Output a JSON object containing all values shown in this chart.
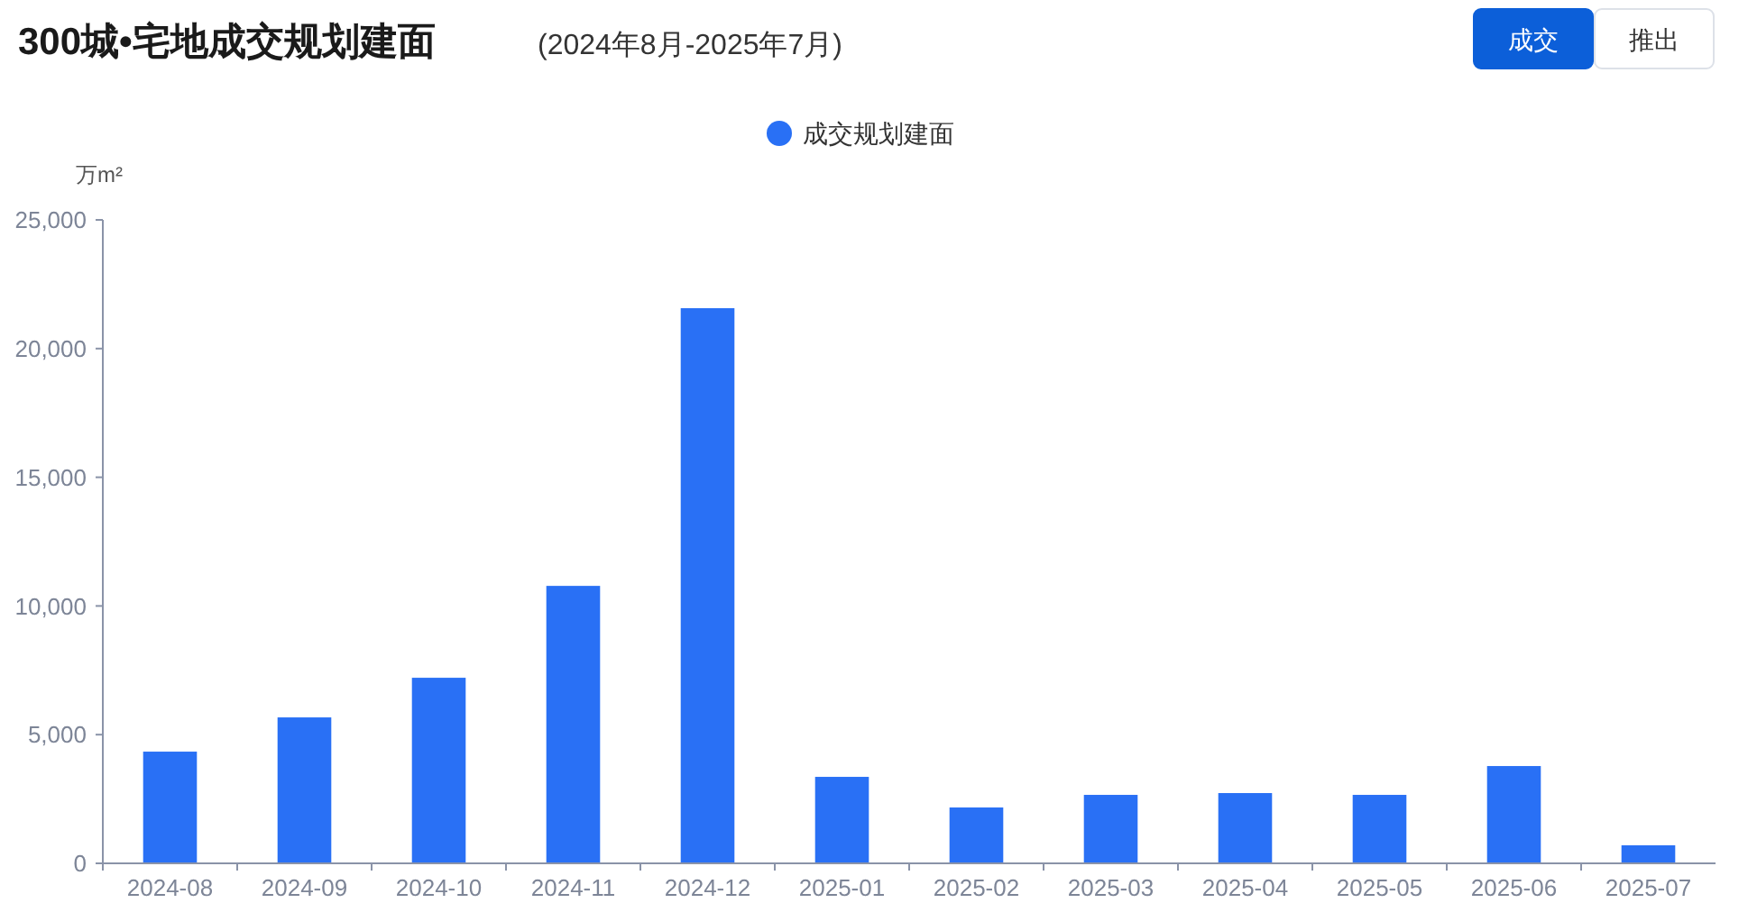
{
  "chart_data": {
    "type": "bar",
    "title": "300城•宅地成交规划建面",
    "subtitle": "(2024年8月-2025年7月)",
    "ylabel": "万m²",
    "categories": [
      "2024-08",
      "2024-09",
      "2024-10",
      "2024-11",
      "2024-12",
      "2025-01",
      "2025-02",
      "2025-03",
      "2025-04",
      "2025-05",
      "2025-06",
      "2025-07"
    ],
    "series": [
      {
        "name": "成交规划建面",
        "color": "#2970f5",
        "values": [
          4340,
          5670,
          7210,
          10780,
          21570,
          3360,
          2170,
          2660,
          2730,
          2660,
          3780,
          700
        ]
      }
    ],
    "ylim": [
      0,
      25000
    ],
    "yticks": [
      {
        "value": 0,
        "label": "0"
      },
      {
        "value": 5000,
        "label": "5,000"
      },
      {
        "value": 10000,
        "label": "10,000"
      },
      {
        "value": 15000,
        "label": "15,000"
      },
      {
        "value": 20000,
        "label": "20,000"
      },
      {
        "value": 25000,
        "label": "25,000"
      }
    ],
    "grid": false,
    "legend": "top",
    "annotations": [
      "成交",
      "推出"
    ]
  }
}
